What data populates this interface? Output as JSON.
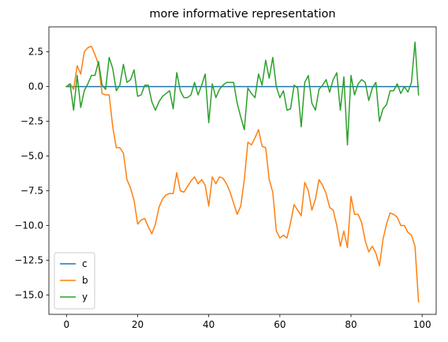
{
  "chart_data": {
    "type": "line",
    "title": "more informative representation",
    "xlabel": "",
    "ylabel": "",
    "xlim": [
      -4.95,
      103.95
    ],
    "ylim": [
      -16.4,
      4.3
    ],
    "xticks": [
      0,
      20,
      40,
      60,
      80,
      100
    ],
    "yticks": [
      2.5,
      0.0,
      -2.5,
      -5.0,
      -7.5,
      -10.0,
      -12.5,
      -15.0
    ],
    "xtick_labels": [
      "0",
      "20",
      "40",
      "60",
      "80",
      "100"
    ],
    "ytick_labels": [
      "2.5",
      "0.0",
      "−2.5",
      "−5.0",
      "−7.5",
      "−10.0",
      "−12.5",
      "−15.0"
    ],
    "grid": false,
    "legend_position": "lower-left",
    "series": [
      {
        "name": "c",
        "color": "#1f77b4",
        "x": [
          0,
          99
        ],
        "y": [
          0.0,
          0.0
        ]
      },
      {
        "name": "b",
        "color": "#ff7f0e",
        "x": [
          0,
          1,
          2,
          3,
          4,
          5,
          6,
          7,
          8,
          9,
          10,
          11,
          12,
          13,
          14,
          15,
          16,
          17,
          18,
          19,
          20,
          21,
          22,
          23,
          24,
          25,
          26,
          27,
          28,
          29,
          30,
          31,
          32,
          33,
          34,
          35,
          36,
          37,
          38,
          39,
          40,
          41,
          42,
          43,
          44,
          45,
          46,
          47,
          48,
          49,
          50,
          51,
          52,
          53,
          54,
          55,
          56,
          57,
          58,
          59,
          60,
          61,
          62,
          63,
          64,
          65,
          66,
          67,
          68,
          69,
          70,
          71,
          72,
          73,
          74,
          75,
          76,
          77,
          78,
          79,
          80,
          81,
          82,
          83,
          84,
          85,
          86,
          87,
          88,
          89,
          90,
          91,
          92,
          93,
          94,
          95,
          96,
          97,
          98,
          99
        ],
        "y": [
          0.0,
          0.2,
          -0.2,
          1.5,
          0.9,
          2.5,
          2.8,
          2.9,
          2.3,
          1.6,
          -0.5,
          -0.6,
          -0.6,
          -2.9,
          -4.4,
          -4.4,
          -4.8,
          -6.7,
          -7.3,
          -8.2,
          -9.9,
          -9.6,
          -9.5,
          -10.1,
          -10.6,
          -9.9,
          -8.7,
          -8.1,
          -7.8,
          -7.7,
          -7.7,
          -6.2,
          -7.5,
          -7.6,
          -7.2,
          -6.8,
          -6.5,
          -7.0,
          -6.7,
          -7.1,
          -8.6,
          -6.5,
          -7.0,
          -6.5,
          -6.6,
          -7.0,
          -7.6,
          -8.4,
          -9.2,
          -8.6,
          -6.7,
          -4.0,
          -4.2,
          -3.7,
          -3.1,
          -4.3,
          -4.4,
          -6.7,
          -7.6,
          -10.4,
          -10.9,
          -10.7,
          -10.9,
          -9.8,
          -8.5,
          -8.9,
          -9.3,
          -6.9,
          -7.5,
          -8.9,
          -8.1,
          -6.7,
          -7.1,
          -7.7,
          -8.7,
          -8.9,
          -10.0,
          -11.5,
          -10.4,
          -11.6,
          -7.9,
          -9.2,
          -9.2,
          -9.8,
          -11.1,
          -11.9,
          -11.5,
          -12.0,
          -12.9,
          -11.0,
          -9.9,
          -9.1,
          -9.2,
          -9.4,
          -10.0,
          -10.0,
          -10.5,
          -10.7,
          -11.5,
          -15.5
        ]
      },
      {
        "name": "y",
        "color": "#2ca02c",
        "x": [
          0,
          1,
          2,
          3,
          4,
          5,
          6,
          7,
          8,
          9,
          10,
          11,
          12,
          13,
          14,
          15,
          16,
          17,
          18,
          19,
          20,
          21,
          22,
          23,
          24,
          25,
          26,
          27,
          28,
          29,
          30,
          31,
          32,
          33,
          34,
          35,
          36,
          37,
          38,
          39,
          40,
          41,
          42,
          43,
          44,
          45,
          46,
          47,
          48,
          49,
          50,
          51,
          52,
          53,
          54,
          55,
          56,
          57,
          58,
          59,
          60,
          61,
          62,
          63,
          64,
          65,
          66,
          67,
          68,
          69,
          70,
          71,
          72,
          73,
          74,
          75,
          76,
          77,
          78,
          79,
          80,
          81,
          82,
          83,
          84,
          85,
          86,
          87,
          88,
          89,
          90,
          91,
          92,
          93,
          94,
          95,
          96,
          97,
          98,
          99
        ],
        "y": [
          0.0,
          0.2,
          -1.7,
          0.8,
          -1.5,
          -0.3,
          0.2,
          0.8,
          0.8,
          1.8,
          0.1,
          -0.2,
          2.1,
          1.3,
          -0.3,
          0.1,
          1.6,
          0.3,
          0.5,
          1.2,
          -0.7,
          -0.6,
          0.1,
          0.1,
          -1.1,
          -1.7,
          -1.1,
          -0.7,
          -0.5,
          -0.3,
          -1.6,
          1.0,
          -0.3,
          -0.8,
          -0.8,
          -0.6,
          0.3,
          -0.6,
          0.1,
          0.9,
          -2.6,
          0.2,
          -0.8,
          -0.2,
          0.1,
          0.3,
          0.3,
          0.3,
          -1.2,
          -2.2,
          -3.1,
          -0.1,
          -0.5,
          -0.8,
          0.9,
          0.1,
          1.9,
          0.6,
          2.1,
          0.0,
          -0.8,
          -0.3,
          -1.7,
          -1.6,
          0.1,
          -0.1,
          -2.9,
          0.3,
          0.8,
          -1.2,
          -1.7,
          -0.2,
          0.1,
          0.5,
          -0.4,
          0.5,
          1.0,
          -1.7,
          0.7,
          -4.2,
          0.8,
          -0.6,
          0.2,
          0.5,
          0.3,
          -1.0,
          -0.1,
          0.3,
          -2.5,
          -1.6,
          -1.3,
          -0.3,
          -0.3,
          0.2,
          -0.5,
          0.0,
          -0.4,
          0.3,
          3.2,
          -0.6
        ]
      }
    ]
  }
}
